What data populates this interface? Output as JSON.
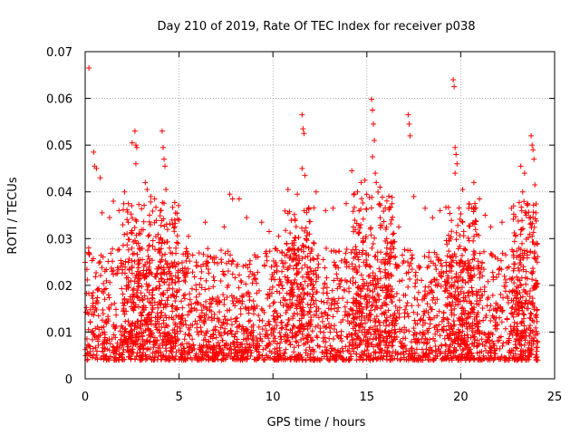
{
  "chart_data": {
    "type": "scatter",
    "title": "Day 210 of 2019, Rate Of TEC Index for receiver p038",
    "xlabel": "GPS time / hours",
    "ylabel": "ROTI / TECUs",
    "xlim": [
      0,
      25
    ],
    "ylim": [
      0,
      0.07
    ],
    "x_ticks": [
      "0",
      "5",
      "10",
      "15",
      "20",
      "25"
    ],
    "y_ticks": [
      "0",
      "0.01",
      "0.02",
      "0.03",
      "0.04",
      "0.05",
      "0.06",
      "0.07"
    ],
    "grid": true,
    "marker": "+",
    "color": "#ff0000",
    "series": [
      {
        "name": "ROTI",
        "points": [
          [
            0.2,
            0.0665
          ],
          [
            0.45,
            0.0485
          ],
          [
            0.5,
            0.0455
          ],
          [
            0.6,
            0.045
          ],
          [
            0.8,
            0.043
          ],
          [
            0.9,
            0.0355
          ],
          [
            1.3,
            0.0345
          ],
          [
            1.5,
            0.038
          ],
          [
            1.8,
            0.036
          ],
          [
            2.1,
            0.04
          ],
          [
            2.3,
            0.0375
          ],
          [
            2.5,
            0.0505
          ],
          [
            2.65,
            0.053
          ],
          [
            2.7,
            0.05
          ],
          [
            2.75,
            0.0495
          ],
          [
            2.7,
            0.046
          ],
          [
            3.2,
            0.042
          ],
          [
            3.3,
            0.0405
          ],
          [
            3.5,
            0.039
          ],
          [
            3.7,
            0.0385
          ],
          [
            4.1,
            0.053
          ],
          [
            4.15,
            0.0495
          ],
          [
            4.2,
            0.047
          ],
          [
            4.25,
            0.0455
          ],
          [
            4.3,
            0.0405
          ],
          [
            4.0,
            0.036
          ],
          [
            5.5,
            0.0305
          ],
          [
            6.4,
            0.0335
          ],
          [
            7.4,
            0.0325
          ],
          [
            7.7,
            0.0395
          ],
          [
            7.85,
            0.0385
          ],
          [
            8.2,
            0.0385
          ],
          [
            8.6,
            0.0345
          ],
          [
            9.4,
            0.0335
          ],
          [
            9.8,
            0.0315
          ],
          [
            10.3,
            0.0305
          ],
          [
            10.8,
            0.0405
          ],
          [
            11.3,
            0.0395
          ],
          [
            11.55,
            0.0565
          ],
          [
            11.6,
            0.0535
          ],
          [
            11.65,
            0.0525
          ],
          [
            11.55,
            0.045
          ],
          [
            11.7,
            0.0435
          ],
          [
            12.3,
            0.04
          ],
          [
            12.8,
            0.036
          ],
          [
            13.2,
            0.0365
          ],
          [
            13.9,
            0.0375
          ],
          [
            14.2,
            0.0445
          ],
          [
            14.5,
            0.04
          ],
          [
            14.7,
            0.042
          ],
          [
            14.9,
            0.0425
          ],
          [
            15.25,
            0.0598
          ],
          [
            15.3,
            0.0575
          ],
          [
            15.35,
            0.0545
          ],
          [
            15.4,
            0.051
          ],
          [
            15.3,
            0.0475
          ],
          [
            15.45,
            0.044
          ],
          [
            15.5,
            0.042
          ],
          [
            15.7,
            0.041
          ],
          [
            16.2,
            0.0365
          ],
          [
            16.7,
            0.0325
          ],
          [
            17.2,
            0.0565
          ],
          [
            17.25,
            0.0545
          ],
          [
            17.3,
            0.052
          ],
          [
            17.5,
            0.039
          ],
          [
            18.1,
            0.0365
          ],
          [
            18.5,
            0.0345
          ],
          [
            18.9,
            0.036
          ],
          [
            19.6,
            0.064
          ],
          [
            19.65,
            0.0625
          ],
          [
            19.7,
            0.0495
          ],
          [
            19.75,
            0.048
          ],
          [
            19.8,
            0.046
          ],
          [
            19.7,
            0.044
          ],
          [
            20.1,
            0.0405
          ],
          [
            20.7,
            0.042
          ],
          [
            21.0,
            0.0385
          ],
          [
            21.3,
            0.035
          ],
          [
            21.6,
            0.0325
          ],
          [
            22.2,
            0.0335
          ],
          [
            22.7,
            0.0365
          ],
          [
            23.2,
            0.0455
          ],
          [
            23.4,
            0.044
          ],
          [
            23.3,
            0.04
          ],
          [
            23.55,
            0.0375
          ],
          [
            23.75,
            0.052
          ],
          [
            23.8,
            0.05
          ],
          [
            23.85,
            0.049
          ],
          [
            23.9,
            0.047
          ],
          [
            23.95,
            0.0415
          ],
          [
            24.0,
            0.0355
          ],
          [
            24.05,
            0.029
          ],
          [
            24.1,
            0.004
          ]
        ],
        "generated_bands": [
          {
            "x_from": 0.0,
            "x_to": 24.1,
            "y_floor": 0.004,
            "y_ceiling": 0.028,
            "density": "dense",
            "count": 2800
          },
          {
            "x_from": 2.0,
            "x_to": 5.0,
            "y_floor": 0.008,
            "y_ceiling": 0.038,
            "density": "medium",
            "count": 320
          },
          {
            "x_from": 10.6,
            "x_to": 12.2,
            "y_floor": 0.008,
            "y_ceiling": 0.037,
            "density": "medium",
            "count": 160
          },
          {
            "x_from": 14.2,
            "x_to": 16.5,
            "y_floor": 0.008,
            "y_ceiling": 0.04,
            "density": "medium",
            "count": 240
          },
          {
            "x_from": 19.2,
            "x_to": 21.0,
            "y_floor": 0.008,
            "y_ceiling": 0.038,
            "density": "medium",
            "count": 170
          },
          {
            "x_from": 22.8,
            "x_to": 24.1,
            "y_floor": 0.008,
            "y_ceiling": 0.038,
            "density": "medium",
            "count": 150
          }
        ]
      }
    ]
  }
}
